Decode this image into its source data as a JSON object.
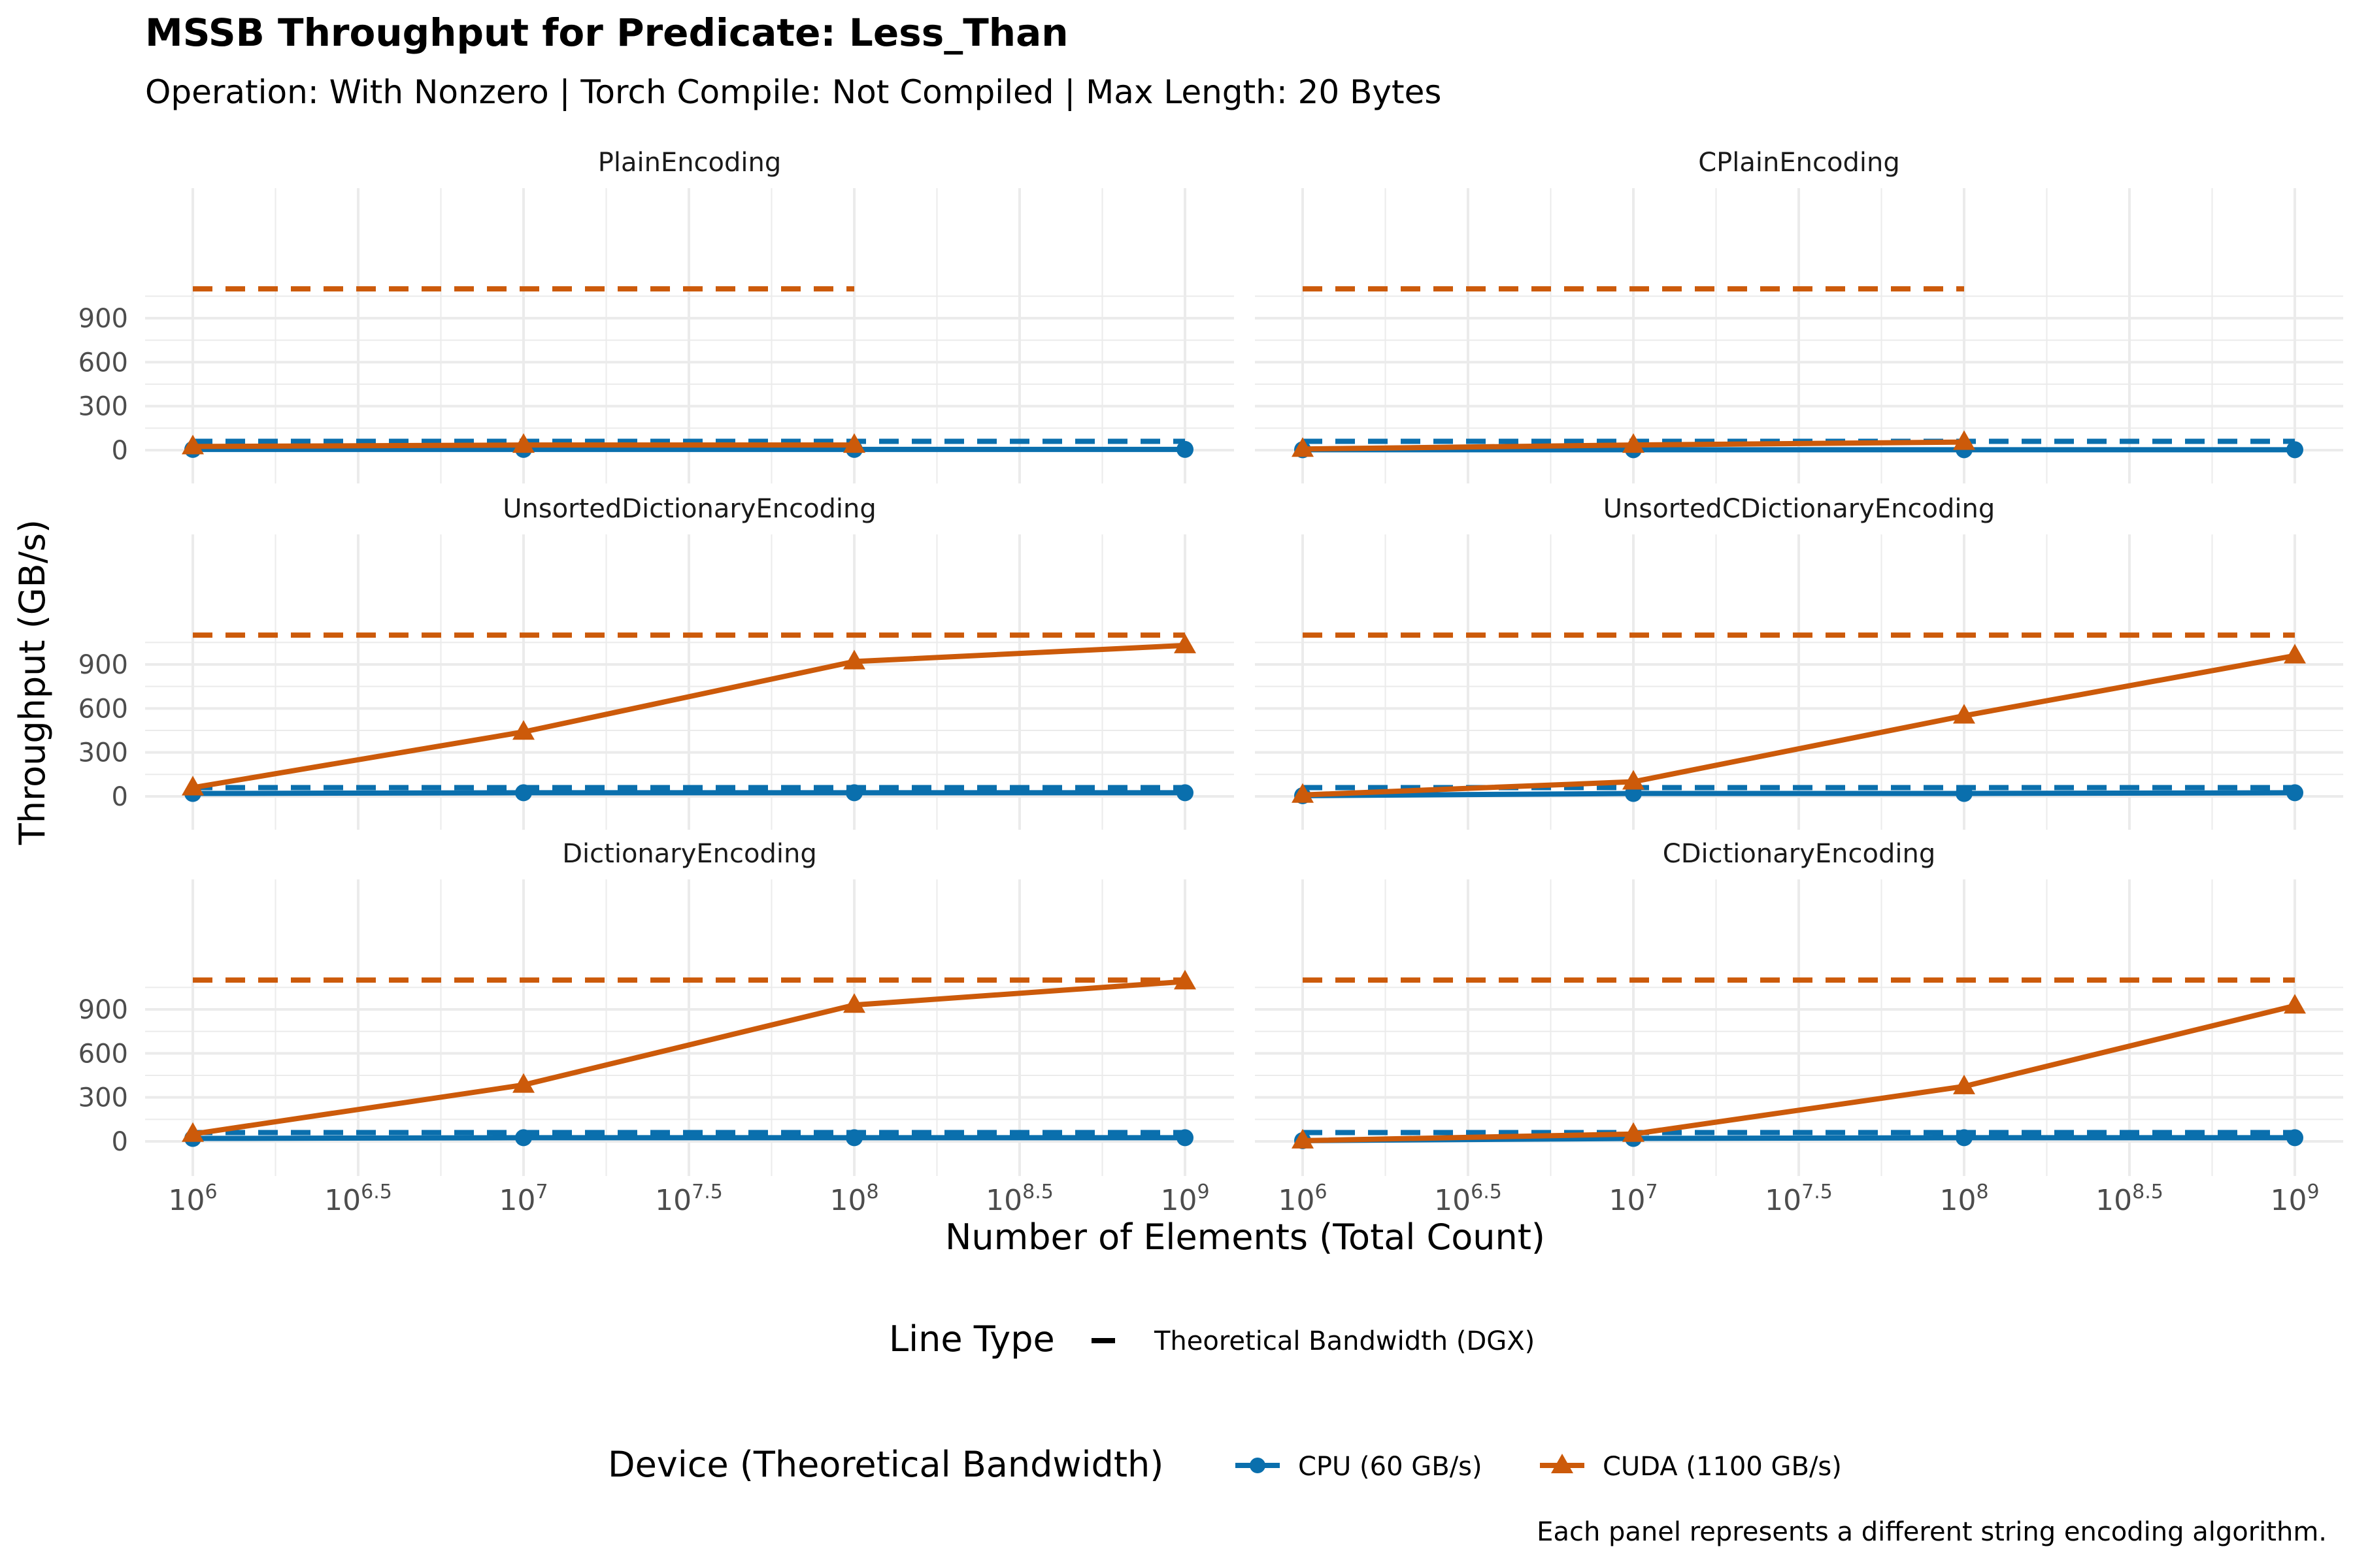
{
  "title": "MSSB Throughput for Predicate: Less_Than",
  "subtitle": "Operation: With Nonzero | Torch Compile: Not Compiled | Max Length: 20 Bytes",
  "caption": "Each panel represents a different string encoding algorithm.",
  "colors": {
    "cpu": "#0a6fad",
    "cuda": "#cc5a0a",
    "grid": "#ebebeb",
    "tick_text": "#4d4d4d"
  },
  "chart_data": {
    "type": "line",
    "xlabel": "Number of Elements (Total Count)",
    "ylabel": "Throughput (GB/s)",
    "x_scale": "log10",
    "xlim": [
      1000000,
      1000000000
    ],
    "ylim": [
      0,
      1100
    ],
    "y_ticks": [
      0,
      300,
      600,
      900
    ],
    "x_tick_labels": [
      {
        "base": "10",
        "exp": "6"
      },
      {
        "base": "10",
        "exp": "6.5"
      },
      {
        "base": "10",
        "exp": "7"
      },
      {
        "base": "10",
        "exp": "7.5"
      },
      {
        "base": "10",
        "exp": "8"
      },
      {
        "base": "10",
        "exp": "8.5"
      },
      {
        "base": "10",
        "exp": "9"
      }
    ],
    "legends": {
      "line_type_title": "Line Type",
      "line_type_entry": "Theoretical Bandwidth (DGX)",
      "device_title": "Device (Theoretical Bandwidth)",
      "device_entries": [
        "CPU (60 GB/s)",
        "CUDA (1100 GB/s)"
      ]
    },
    "panels": [
      {
        "name": "PlainEncoding",
        "series": [
          {
            "name": "CPU (60 GB/s)",
            "x": [
              1000000,
              10000000,
              100000000,
              1000000000
            ],
            "y": [
              5,
              5,
              5,
              5
            ]
          },
          {
            "name": "CUDA (1100 GB/s)",
            "x": [
              1000000,
              10000000,
              100000000
            ],
            "y": [
              25,
              35,
              35
            ]
          }
        ],
        "bandwidth": [
          {
            "name": "CPU (60 GB/s)",
            "value": 60,
            "x": [
              1000000,
              1000000000
            ]
          },
          {
            "name": "CUDA (1100 GB/s)",
            "value": 1100,
            "x": [
              1000000,
              100000000
            ]
          }
        ]
      },
      {
        "name": "CPlainEncoding",
        "series": [
          {
            "name": "CPU (60 GB/s)",
            "x": [
              1000000,
              10000000,
              100000000,
              1000000000
            ],
            "y": [
              3,
              3,
              3,
              3
            ]
          },
          {
            "name": "CUDA (1100 GB/s)",
            "x": [
              1000000,
              10000000,
              100000000
            ],
            "y": [
              8,
              35,
              55
            ]
          }
        ],
        "bandwidth": [
          {
            "name": "CPU (60 GB/s)",
            "value": 60,
            "x": [
              1000000,
              1000000000
            ]
          },
          {
            "name": "CUDA (1100 GB/s)",
            "value": 1100,
            "x": [
              1000000,
              100000000
            ]
          }
        ]
      },
      {
        "name": "UnsortedDictionaryEncoding",
        "series": [
          {
            "name": "CPU (60 GB/s)",
            "x": [
              1000000,
              10000000,
              100000000,
              1000000000
            ],
            "y": [
              20,
              25,
              25,
              25
            ]
          },
          {
            "name": "CUDA (1100 GB/s)",
            "x": [
              1000000,
              10000000,
              100000000,
              1000000000
            ],
            "y": [
              60,
              440,
              920,
              1030
            ]
          }
        ],
        "bandwidth": [
          {
            "name": "CPU (60 GB/s)",
            "value": 60,
            "x": [
              1000000,
              1000000000
            ]
          },
          {
            "name": "CUDA (1100 GB/s)",
            "value": 1100,
            "x": [
              1000000,
              1000000000
            ]
          }
        ]
      },
      {
        "name": "UnsortedCDictionaryEncoding",
        "series": [
          {
            "name": "CPU (60 GB/s)",
            "x": [
              1000000,
              10000000,
              100000000,
              1000000000
            ],
            "y": [
              5,
              20,
              20,
              25
            ]
          },
          {
            "name": "CUDA (1100 GB/s)",
            "x": [
              1000000,
              10000000,
              100000000,
              1000000000
            ],
            "y": [
              10,
              100,
              550,
              960
            ]
          }
        ],
        "bandwidth": [
          {
            "name": "CPU (60 GB/s)",
            "value": 60,
            "x": [
              1000000,
              1000000000
            ]
          },
          {
            "name": "CUDA (1100 GB/s)",
            "value": 1100,
            "x": [
              1000000,
              1000000000
            ]
          }
        ]
      },
      {
        "name": "DictionaryEncoding",
        "series": [
          {
            "name": "CPU (60 GB/s)",
            "x": [
              1000000,
              10000000,
              100000000,
              1000000000
            ],
            "y": [
              20,
              25,
              25,
              25
            ]
          },
          {
            "name": "CUDA (1100 GB/s)",
            "x": [
              1000000,
              10000000,
              100000000,
              1000000000
            ],
            "y": [
              50,
              385,
              930,
              1090
            ]
          }
        ],
        "bandwidth": [
          {
            "name": "CPU (60 GB/s)",
            "value": 60,
            "x": [
              1000000,
              1000000000
            ]
          },
          {
            "name": "CUDA (1100 GB/s)",
            "value": 1100,
            "x": [
              1000000,
              1000000000
            ]
          }
        ]
      },
      {
        "name": "CDictionaryEncoding",
        "series": [
          {
            "name": "CPU (60 GB/s)",
            "x": [
              1000000,
              10000000,
              100000000,
              1000000000
            ],
            "y": [
              5,
              20,
              25,
              25
            ]
          },
          {
            "name": "CUDA (1100 GB/s)",
            "x": [
              1000000,
              10000000,
              100000000,
              1000000000
            ],
            "y": [
              5,
              50,
              375,
              925
            ]
          }
        ],
        "bandwidth": [
          {
            "name": "CPU (60 GB/s)",
            "value": 60,
            "x": [
              1000000,
              1000000000
            ]
          },
          {
            "name": "CUDA (1100 GB/s)",
            "value": 1100,
            "x": [
              1000000,
              1000000000
            ]
          }
        ]
      }
    ]
  }
}
